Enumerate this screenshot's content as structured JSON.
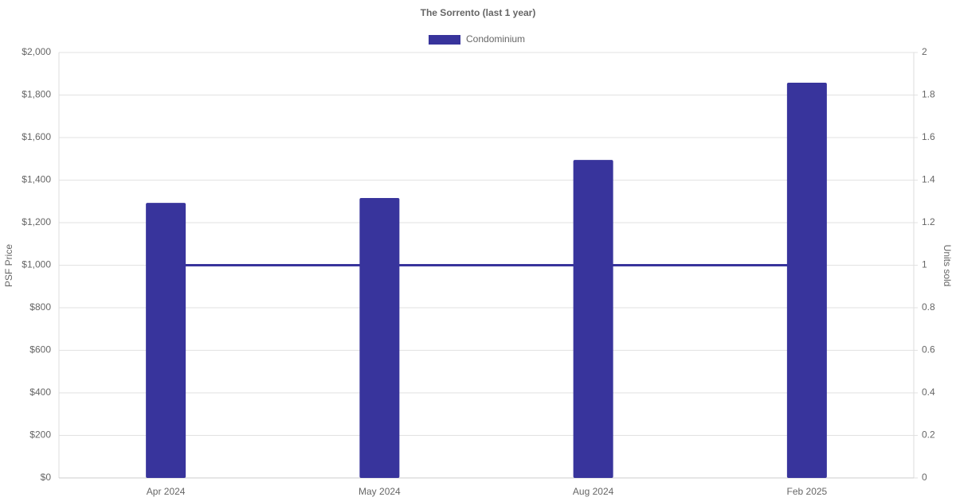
{
  "chart_data": {
    "type": "bar",
    "title": "The Sorrento (last 1 year)",
    "y_label": "PSF Price",
    "y2_label": "Units sold",
    "categories": [
      "Apr 2024",
      "May 2024",
      "Aug 2024",
      "Feb 2025"
    ],
    "series": [
      {
        "name": "Condominium",
        "type": "bar",
        "color": "#38349c",
        "values": [
          1293,
          1316,
          1495,
          1858
        ]
      },
      {
        "type": "line",
        "axis": "y2",
        "color": "#38349c",
        "values": [
          1,
          1,
          1,
          1
        ]
      }
    ],
    "ylim": [
      0,
      2000
    ],
    "yticks": [
      {
        "value": 0,
        "label": "$0"
      },
      {
        "value": 200,
        "label": "$200"
      },
      {
        "value": 400,
        "label": "$400"
      },
      {
        "value": 600,
        "label": "$600"
      },
      {
        "value": 800,
        "label": "$800"
      },
      {
        "value": 1000,
        "label": "$1,000"
      },
      {
        "value": 1200,
        "label": "$1,200"
      },
      {
        "value": 1400,
        "label": "$1,400"
      },
      {
        "value": 1600,
        "label": "$1,600"
      },
      {
        "value": 1800,
        "label": "$1,800"
      },
      {
        "value": 2000,
        "label": "$2,000"
      }
    ],
    "y2lim": [
      0,
      2
    ],
    "y2ticks": [
      0,
      0.2,
      0.4,
      0.6,
      0.8,
      1,
      1.2,
      1.4,
      1.6,
      1.8,
      2
    ],
    "grid": true,
    "legend": "top"
  }
}
